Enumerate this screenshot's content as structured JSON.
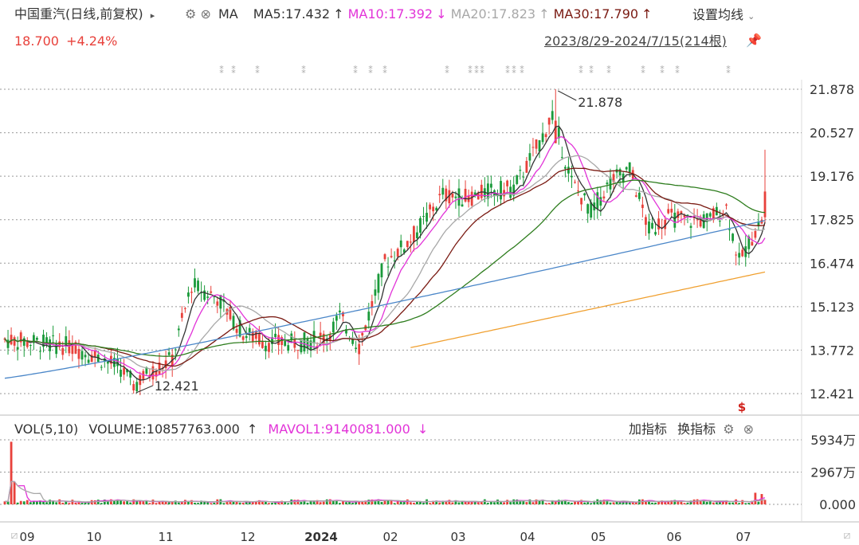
{
  "header": {
    "stock_name": "中国重汽",
    "period": "(日线,前复权)",
    "play_icon": "play-triangle-icon",
    "indicator": "MA",
    "ma5": "MA5:17.432",
    "ma5_arrow": "↑",
    "ma10": "MA10:17.392",
    "ma10_arrow": "↓",
    "ma20": "MA20:17.823",
    "ma20_arrow": "↑",
    "ma30": "MA30:17.790",
    "ma30_arrow": "↑",
    "settings_label": "设置均线",
    "price": "18.700",
    "change": "+4.24%",
    "date_range": "2023/8/29-2024/7/15(214根)"
  },
  "volume_header": {
    "vol_label": "VOL(5,10)",
    "volume": "VOLUME:10857763.000",
    "volume_arrow": "↑",
    "mavol1": "MAVOL1:9140081.000",
    "mavol1_arrow": "↓",
    "add_indicator": "加指标",
    "switch_indicator": "换指标"
  },
  "colors": {
    "up": "#e8413b",
    "down": "#1a9a3a",
    "ma5": "#333333",
    "ma10": "#e233d8",
    "ma20": "#a8a8a8",
    "ma30": "#7a1a12",
    "ma60": "#2e7d1e",
    "ma120": "#4a86c8",
    "ma250": "#f0a030",
    "grid": "#999999"
  },
  "chart_data": [
    {
      "type": "candlestick",
      "title": "中国重汽",
      "y_ticks": [
        "21.878",
        "20.527",
        "19.176",
        "17.825",
        "16.474",
        "15.123",
        "13.772",
        "12.421"
      ],
      "ylim": [
        12.421,
        21.878
      ],
      "x_ticks": [
        "09",
        "10",
        "11",
        "12",
        "2024",
        "02",
        "03",
        "04",
        "05",
        "06",
        "07"
      ],
      "annotations": [
        {
          "label": "21.878",
          "note": "max"
        },
        {
          "label": "12.421",
          "note": "min"
        }
      ],
      "series_close_approx": [
        {
          "month": "2023-09",
          "close": 14.0
        },
        {
          "month": "2023-10",
          "close": 13.3
        },
        {
          "month": "2023-11",
          "close": 15.6
        },
        {
          "month": "2023-12",
          "close": 14.0
        },
        {
          "month": "2024-01",
          "close": 13.9
        },
        {
          "month": "2024-02",
          "close": 17.4
        },
        {
          "month": "2024-03",
          "close": 18.5
        },
        {
          "month": "2024-04",
          "close": 20.5
        },
        {
          "month": "2024-05",
          "close": 19.0
        },
        {
          "month": "2024-06",
          "close": 17.8
        },
        {
          "month": "2024-07",
          "close": 18.7
        }
      ],
      "ma_last_values": {
        "MA5": 17.432,
        "MA10": 17.392,
        "MA20": 17.823,
        "MA30": 17.79
      }
    },
    {
      "type": "bar",
      "title": "VOL(5,10)",
      "y_ticks": [
        "5934万",
        "2967万",
        "0.000"
      ],
      "ylim": [
        0,
        59340000
      ]
    }
  ]
}
